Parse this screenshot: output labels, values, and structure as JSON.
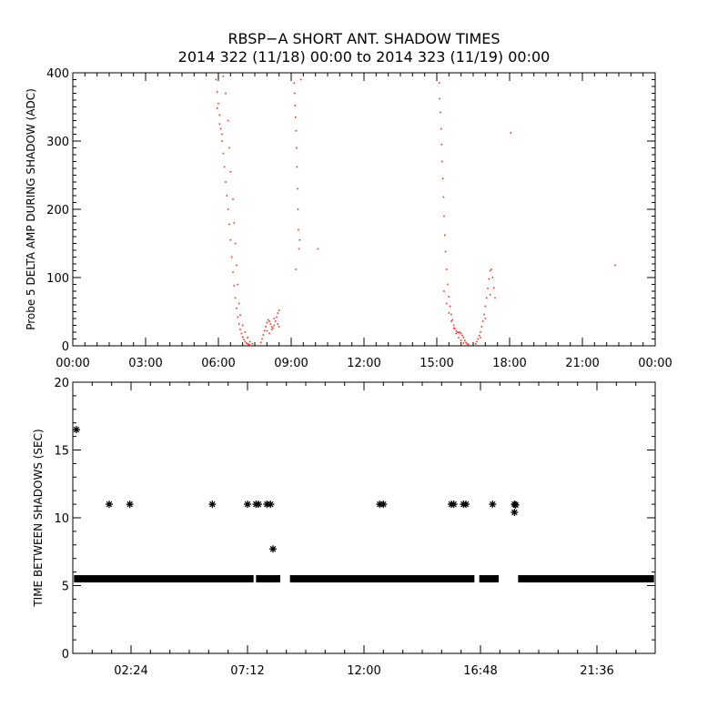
{
  "title": {
    "line1": "RBSP−A SHORT ANT. SHADOW TIMES",
    "line2": "2014 322 (11/18) 00:00 to 2014 323 (11/19) 00:00"
  },
  "chart_data": [
    {
      "type": "scatter",
      "ylabel": "Probe 5 DELTA AMP DURING SHADOW (ADC)",
      "xlim": [
        0,
        24
      ],
      "ylim": [
        0,
        400
      ],
      "x_unit": "hours since 00:00 2014-11-18",
      "xticks": [
        0,
        3,
        6,
        9,
        12,
        15,
        18,
        21,
        24
      ],
      "xtick_labels": [
        "00:00",
        "03:00",
        "06:00",
        "09:00",
        "12:00",
        "15:00",
        "18:00",
        "21:00",
        "00:00"
      ],
      "yticks": [
        0,
        100,
        200,
        300,
        400
      ],
      "ytick_labels": [
        "0",
        "100",
        "200",
        "300",
        "400"
      ],
      "marker_color": "#e8321e",
      "series": [
        {
          "points": [
            [
              5.85,
              400
            ],
            [
              5.9,
              390
            ],
            [
              5.95,
              372
            ],
            [
              6.0,
              355
            ],
            [
              6.05,
              338
            ],
            [
              6.1,
              318
            ],
            [
              6.15,
              300
            ],
            [
              6.2,
              282
            ],
            [
              6.25,
              262
            ],
            [
              6.3,
              240
            ],
            [
              6.35,
              220
            ],
            [
              6.4,
              200
            ],
            [
              6.45,
              178
            ],
            [
              6.5,
              155
            ],
            [
              6.55,
              130
            ],
            [
              6.6,
              108
            ],
            [
              6.65,
              88
            ],
            [
              6.7,
              70
            ],
            [
              6.75,
              55
            ],
            [
              6.8,
              42
            ],
            [
              6.85,
              32
            ],
            [
              6.9,
              24
            ],
            [
              6.95,
              18
            ],
            [
              7.0,
              13
            ],
            [
              7.05,
              9
            ],
            [
              7.1,
              6
            ],
            [
              7.15,
              4
            ],
            [
              7.2,
              3
            ],
            [
              7.25,
              2
            ],
            [
              7.3,
              1
            ],
            [
              6.2,
              395
            ],
            [
              6.3,
              370
            ],
            [
              6.4,
              330
            ],
            [
              6.45,
              290
            ],
            [
              6.5,
              255
            ],
            [
              6.6,
              215
            ],
            [
              6.65,
              180
            ],
            [
              6.7,
              150
            ],
            [
              6.75,
              118
            ],
            [
              6.8,
              90
            ],
            [
              6.85,
              62
            ],
            [
              6.9,
              45
            ],
            [
              7.0,
              30
            ],
            [
              7.1,
              20
            ],
            [
              7.2,
              12
            ],
            [
              7.3,
              6
            ],
            [
              7.4,
              3
            ],
            [
              5.95,
              348
            ],
            [
              6.05,
              325
            ],
            [
              6.15,
              310
            ],
            [
              7.75,
              5
            ],
            [
              7.8,
              10
            ],
            [
              7.85,
              16
            ],
            [
              7.9,
              22
            ],
            [
              7.95,
              28
            ],
            [
              8.0,
              34
            ],
            [
              8.05,
              38
            ],
            [
              8.1,
              36
            ],
            [
              8.15,
              32
            ],
            [
              8.2,
              28
            ],
            [
              8.25,
              26
            ],
            [
              8.3,
              30
            ],
            [
              8.35,
              36
            ],
            [
              8.4,
              42
            ],
            [
              8.45,
              48
            ],
            [
              8.5,
              52
            ],
            [
              8.0,
              22
            ],
            [
              8.1,
              18
            ],
            [
              8.2,
              24
            ],
            [
              8.3,
              40
            ],
            [
              8.45,
              32
            ],
            [
              8.5,
              28
            ],
            [
              9.1,
              400
            ],
            [
              9.12,
              385
            ],
            [
              9.14,
              370
            ],
            [
              9.16,
              352
            ],
            [
              9.18,
              335
            ],
            [
              9.2,
              315
            ],
            [
              9.22,
              290
            ],
            [
              9.24,
              262
            ],
            [
              9.26,
              230
            ],
            [
              9.28,
              200
            ],
            [
              9.3,
              170
            ],
            [
              9.32,
              142
            ],
            [
              9.2,
              112
            ],
            [
              9.35,
              155
            ],
            [
              9.4,
              390
            ],
            [
              10.1,
              142
            ],
            [
              15.05,
              400
            ],
            [
              15.1,
              385
            ],
            [
              15.12,
              362
            ],
            [
              15.15,
              342
            ],
            [
              15.18,
              318
            ],
            [
              15.2,
              295
            ],
            [
              15.22,
              270
            ],
            [
              15.25,
              245
            ],
            [
              15.28,
              218
            ],
            [
              15.3,
              190
            ],
            [
              15.33,
              162
            ],
            [
              15.36,
              138
            ],
            [
              15.4,
              112
            ],
            [
              15.45,
              90
            ],
            [
              15.5,
              72
            ],
            [
              15.55,
              58
            ],
            [
              15.6,
              46
            ],
            [
              15.65,
              38
            ],
            [
              15.7,
              30
            ],
            [
              15.75,
              25
            ],
            [
              15.8,
              22
            ],
            [
              15.85,
              20
            ],
            [
              15.9,
              19
            ],
            [
              15.95,
              20
            ],
            [
              16.0,
              18
            ],
            [
              16.05,
              15
            ],
            [
              16.1,
              12
            ],
            [
              16.15,
              8
            ],
            [
              16.2,
              5
            ],
            [
              16.25,
              3
            ],
            [
              16.3,
              2
            ],
            [
              15.3,
              80
            ],
            [
              15.4,
              62
            ],
            [
              15.5,
              48
            ],
            [
              15.6,
              36
            ],
            [
              15.7,
              26
            ],
            [
              15.8,
              18
            ],
            [
              15.9,
              12
            ],
            [
              16.0,
              8
            ],
            [
              16.1,
              4
            ],
            [
              16.6,
              3
            ],
            [
              16.65,
              6
            ],
            [
              16.7,
              10
            ],
            [
              16.75,
              15
            ],
            [
              16.8,
              20
            ],
            [
              16.85,
              28
            ],
            [
              16.9,
              36
            ],
            [
              16.95,
              46
            ],
            [
              17.0,
              58
            ],
            [
              17.05,
              70
            ],
            [
              17.1,
              84
            ],
            [
              17.15,
              98
            ],
            [
              17.2,
              110
            ],
            [
              17.25,
              112
            ],
            [
              17.3,
              100
            ],
            [
              17.35,
              85
            ],
            [
              17.4,
              70
            ],
            [
              16.8,
              12
            ],
            [
              17.0,
              40
            ],
            [
              17.2,
              75
            ],
            [
              18.05,
              312
            ],
            [
              22.35,
              118
            ]
          ]
        }
      ]
    },
    {
      "type": "scatter",
      "ylabel": "TIME BETWEEN SHADOWS (SEC)",
      "xlim": [
        0,
        24
      ],
      "ylim": [
        0,
        20
      ],
      "x_unit": "hours since 00:00 2014-11-18",
      "xticks": [
        2.4,
        7.2,
        12.0,
        16.8,
        21.6
      ],
      "xtick_labels": [
        "02:24",
        "07:12",
        "12:00",
        "16:48",
        "21:36"
      ],
      "yticks": [
        0,
        5,
        10,
        15,
        20
      ],
      "ytick_labels": [
        "0",
        "5",
        "10",
        "15",
        "20"
      ],
      "marker": "asterisk",
      "marker_color": "#000000",
      "baseline": {
        "y": 5.5,
        "segments": [
          [
            0.05,
            7.45
          ],
          [
            7.55,
            8.55
          ],
          [
            8.95,
            16.55
          ],
          [
            16.75,
            17.55
          ],
          [
            18.35,
            23.95
          ]
        ]
      },
      "series": [
        {
          "points": [
            [
              0.15,
              16.5
            ],
            [
              1.5,
              11.0
            ],
            [
              2.35,
              11.0
            ],
            [
              5.75,
              11.0
            ],
            [
              7.2,
              11.0
            ],
            [
              7.55,
              11.0
            ],
            [
              7.65,
              11.0
            ],
            [
              8.0,
              11.0
            ],
            [
              8.15,
              11.0
            ],
            [
              8.25,
              7.7
            ],
            [
              12.65,
              11.0
            ],
            [
              12.8,
              11.0
            ],
            [
              15.6,
              11.0
            ],
            [
              15.7,
              11.0
            ],
            [
              16.1,
              11.0
            ],
            [
              16.2,
              11.0
            ],
            [
              17.3,
              11.0
            ],
            [
              18.2,
              11.0
            ],
            [
              18.25,
              10.95
            ],
            [
              18.2,
              10.4
            ]
          ]
        }
      ]
    }
  ]
}
